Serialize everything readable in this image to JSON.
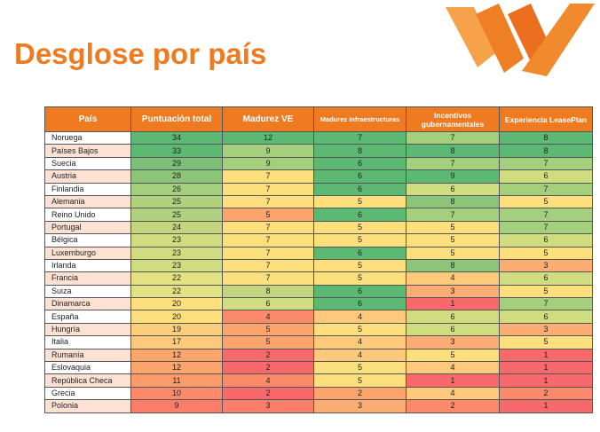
{
  "title": "Desglose por país",
  "colors": {
    "accent": "#ee7b21",
    "header_bg": "#ee7b22"
  },
  "table": {
    "headers": [
      "País",
      "Puntuación total",
      "Madurez VE",
      "Madurez infraestructuras",
      "Incentivos gubernamentales",
      "Experiencia LeasePlan"
    ],
    "rows": [
      {
        "country": "Noruega",
        "values": [
          "34",
          "12",
          "7",
          "7",
          "8"
        ]
      },
      {
        "country": "Países Bajos",
        "values": [
          "33",
          "9",
          "8",
          "8",
          "8"
        ]
      },
      {
        "country": "Suecia",
        "values": [
          "29",
          "9",
          "6",
          "7",
          "7"
        ]
      },
      {
        "country": "Austria",
        "values": [
          "28",
          "7",
          "6",
          "9",
          "6"
        ]
      },
      {
        "country": "Finlandia",
        "values": [
          "26",
          "7",
          "6",
          "6",
          "7"
        ]
      },
      {
        "country": "Alemania",
        "values": [
          "25",
          "7",
          "5",
          "8",
          "5"
        ]
      },
      {
        "country": "Reino Unido",
        "values": [
          "25",
          "5",
          "6",
          "7",
          "7"
        ]
      },
      {
        "country": "Portugal",
        "values": [
          "24",
          "7",
          "5",
          "5",
          "7"
        ]
      },
      {
        "country": "Bélgica",
        "values": [
          "23",
          "7",
          "5",
          "5",
          "6"
        ]
      },
      {
        "country": "Luxemburgo",
        "values": [
          "23",
          "7",
          "6",
          "5",
          "5"
        ]
      },
      {
        "country": "Irlanda",
        "values": [
          "23",
          "7",
          "5",
          "8",
          "3"
        ]
      },
      {
        "country": "Francia",
        "values": [
          "22",
          "7",
          "5",
          "4",
          "6"
        ]
      },
      {
        "country": "Suiza",
        "values": [
          "22",
          "8",
          "6",
          "3",
          "5"
        ]
      },
      {
        "country": "Dinamarca",
        "values": [
          "20",
          "6",
          "6",
          "1",
          "7"
        ]
      },
      {
        "country": "España",
        "values": [
          "20",
          "4",
          "4",
          "6",
          "6"
        ]
      },
      {
        "country": "Hungría",
        "values": [
          "19",
          "5",
          "5",
          "6",
          "3"
        ]
      },
      {
        "country": "Italia",
        "values": [
          "17",
          "5",
          "4",
          "3",
          "5"
        ]
      },
      {
        "country": "Rumanía",
        "values": [
          "12",
          "2",
          "4",
          "5",
          "1"
        ]
      },
      {
        "country": "Eslovaquia",
        "values": [
          "12",
          "2",
          "5",
          "4",
          "1"
        ]
      },
      {
        "country": "República Checa",
        "values": [
          "11",
          "4",
          "5",
          "1",
          "1"
        ]
      },
      {
        "country": "Grecia",
        "values": [
          "10",
          "2",
          "2",
          "4",
          "2"
        ]
      },
      {
        "country": "Polonia",
        "values": [
          "9",
          "3",
          "3",
          "2",
          "1"
        ]
      }
    ]
  },
  "cell_colors": [
    [
      "#5cb974",
      "#5cb974",
      "#5cb974",
      "#a4cf7d",
      "#5cb974"
    ],
    [
      "#5cb974",
      "#a4cf7d",
      "#5cb974",
      "#5cb974",
      "#5cb974"
    ],
    [
      "#7bbf79",
      "#a4cf7d",
      "#5cb974",
      "#a4cf7d",
      "#a4cf7d"
    ],
    [
      "#8cc47a",
      "#fde07d",
      "#5cb974",
      "#5cb974",
      "#cfdd80"
    ],
    [
      "#a4cf7d",
      "#fde07d",
      "#5cb974",
      "#cfdd80",
      "#a4cf7d"
    ],
    [
      "#b0d17e",
      "#fde07d",
      "#fde07d",
      "#8cc47a",
      "#fde07d"
    ],
    [
      "#b0d17e",
      "#fba46c",
      "#5cb974",
      "#a4cf7d",
      "#a4cf7d"
    ],
    [
      "#c3d67f",
      "#fde07d",
      "#fde07d",
      "#fde07d",
      "#a4cf7d"
    ],
    [
      "#cfdd80",
      "#fde07d",
      "#fde07d",
      "#fde07d",
      "#cfdd80"
    ],
    [
      "#cfdd80",
      "#fde07d",
      "#5cb974",
      "#fde07d",
      "#fde07d"
    ],
    [
      "#cfdd80",
      "#fde07d",
      "#fde07d",
      "#8cc47a",
      "#fbad73"
    ],
    [
      "#e3e283",
      "#fde07d",
      "#fde07d",
      "#fec97a",
      "#cfdd80"
    ],
    [
      "#e3e283",
      "#c3d67f",
      "#5cb974",
      "#fbad73",
      "#fde07d"
    ],
    [
      "#fde07d",
      "#cfdd80",
      "#5cb974",
      "#f8696b",
      "#a4cf7d"
    ],
    [
      "#fde07d",
      "#fb8a6a",
      "#fec97a",
      "#cfdd80",
      "#cfdd80"
    ],
    [
      "#fecf7b",
      "#fba46c",
      "#fde07d",
      "#cfdd80",
      "#fbad73"
    ],
    [
      "#fec97a",
      "#fba46c",
      "#fec97a",
      "#fbad73",
      "#fde07d"
    ],
    [
      "#fba46c",
      "#f8696b",
      "#fec97a",
      "#fde07d",
      "#f8696b"
    ],
    [
      "#fba46c",
      "#f8696b",
      "#fde07d",
      "#fec97a",
      "#f8696b"
    ],
    [
      "#fb9a6b",
      "#fb8a6a",
      "#fde07d",
      "#f8696b",
      "#f8696b"
    ],
    [
      "#fb8a6a",
      "#f8696b",
      "#fba46c",
      "#fec97a",
      "#fb8a6a"
    ],
    [
      "#fb7d6a",
      "#fb7d6a",
      "#fbad73",
      "#fb8a6a",
      "#f8696b"
    ]
  ]
}
